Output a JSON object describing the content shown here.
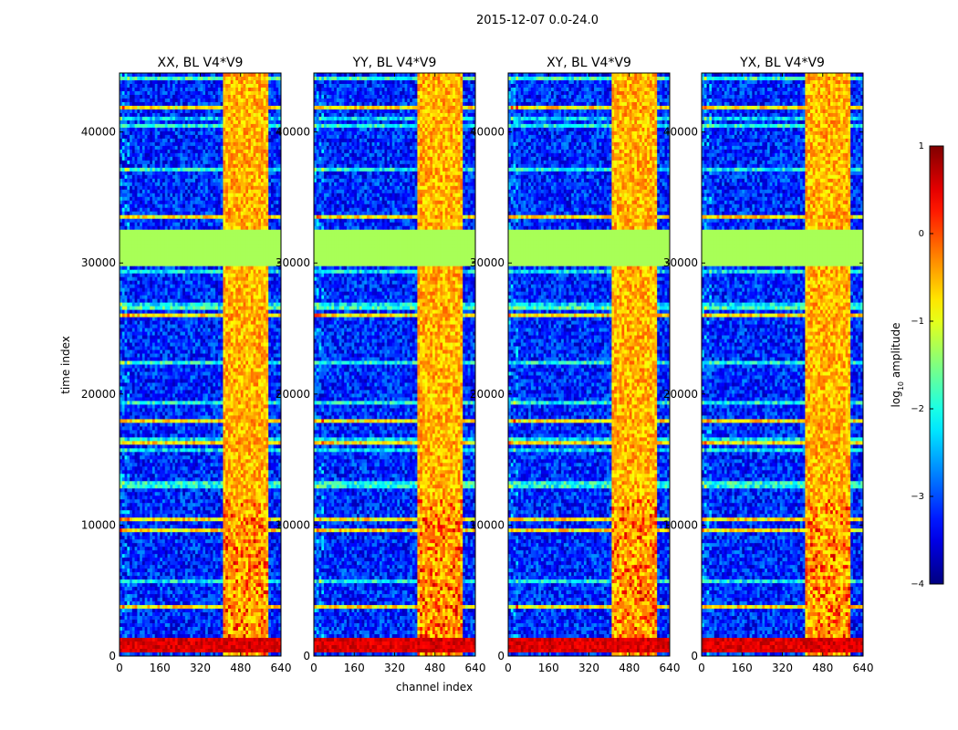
{
  "figure": {
    "suptitle": "2015-12-07 0.0-24.0",
    "xlabel": "channel index",
    "ylabel": "time index"
  },
  "colorbar": {
    "label_base": "log",
    "label_sub": "10",
    "label_rest": " amplitude",
    "range": [
      -4,
      1
    ],
    "ticks": [
      1,
      0,
      -1,
      -2,
      -3,
      -4
    ],
    "tick_labels": [
      "1",
      "0",
      "−1",
      "−2",
      "−3",
      "−4"
    ],
    "colormap": "jet"
  },
  "chart_data": {
    "type": "heatmap",
    "description_units": "log10 amplitude per (channel, time) cell",
    "x_range": [
      0,
      640
    ],
    "y_range": [
      0,
      44500
    ],
    "x_ticks": [
      0,
      160,
      320,
      480,
      640
    ],
    "y_ticks": [
      0,
      10000,
      20000,
      30000,
      40000
    ],
    "panels": [
      {
        "title": "XX, BL V4*V9",
        "variant": "XX"
      },
      {
        "title": "YY, BL V4*V9",
        "variant": "YY"
      },
      {
        "title": "XY, BL V4*V9",
        "variant": "XY"
      },
      {
        "title": "YX, BL V4*V9",
        "variant": "YX"
      }
    ],
    "flagged_time_band": [
      29800,
      32500
    ],
    "flagged_value": -1.3,
    "rfi_channel_bands": [
      [
        410,
        455
      ],
      [
        460,
        495
      ],
      [
        500,
        545
      ],
      [
        555,
        590
      ]
    ],
    "rfi_level": -0.5,
    "horizontal_rfi_times": [
      1000,
      3800,
      10300,
      16300,
      41800,
      9500,
      18000,
      26000,
      33500
    ],
    "background_level": -3.2
  }
}
